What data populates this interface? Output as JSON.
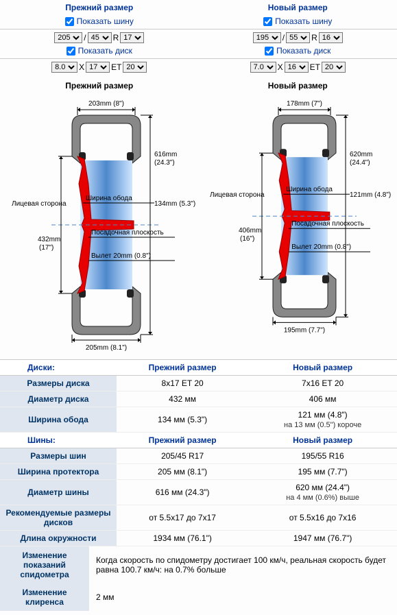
{
  "cols": [
    {
      "title": "Прежний размер",
      "show_tire": "Показать шину",
      "tire_sel": {
        "w": "205",
        "a": "45",
        "r": "17"
      },
      "show_wheel": "Показать диск",
      "wheel_sel": {
        "w": "8.0",
        "d": "17",
        "et": "20"
      },
      "diag_title": "Прежний размер",
      "diag": {
        "top_w": "203mm (8\")",
        "outer_h": "616mm",
        "outer_h2": "(24.3\")",
        "face": "Лицевая сторона",
        "rim_w": "Ширина обода",
        "rim_wv": "134mm (5.3\")",
        "seat": "Посадочная плоскость",
        "rim_d": "432mm",
        "rim_d2": "(17\")",
        "offset": "Вылет 20mm (0.8\")",
        "bot_w": "205mm (8.1\")"
      }
    },
    {
      "title": "Новый размер",
      "show_tire": "Показать шину",
      "tire_sel": {
        "w": "195",
        "a": "55",
        "r": "16"
      },
      "show_wheel": "Показать диск",
      "wheel_sel": {
        "w": "7.0",
        "d": "16",
        "et": "20"
      },
      "diag_title": "Новый размер",
      "diag": {
        "top_w": "178mm (7\")",
        "outer_h": "620mm",
        "outer_h2": "(24.4\")",
        "face": "Лицевая сторона",
        "rim_w": "Ширина обода",
        "rim_wv": "121mm (4.8\")",
        "seat": "Посадочная плоскость",
        "rim_d": "406mm",
        "rim_d2": "(16\")",
        "offset": "Вылет 20mm (0.8\")",
        "bot_w": "195mm (7.7\")"
      }
    }
  ],
  "slash": "/",
  "R": "R",
  "X": "X",
  "ET": "ET",
  "table": {
    "discs_hdr": [
      "Диски:",
      "Прежний размер",
      "Новый размер"
    ],
    "discs_rows": [
      [
        "Размеры диска",
        "8x17 ET 20",
        "7x16 ET 20"
      ],
      [
        "Диаметр диска",
        "432 мм",
        "406 мм"
      ],
      [
        "Ширина обода",
        "134 мм (5.3\")",
        "121 мм (4.8\")\nна 13 мм (0.5\") короче"
      ]
    ],
    "tires_hdr": [
      "Шины:",
      "Прежний размер",
      "Новый размер"
    ],
    "tires_rows": [
      [
        "Размеры шин",
        "205/45 R17",
        "195/55 R16"
      ],
      [
        "Ширина протектора",
        "205 мм (8.1\")",
        "195 мм (7.7\")"
      ],
      [
        "Диаметр шины",
        "616 мм (24.3\")",
        "620 мм (24.4\")\nна 4 мм (0.6%) выше"
      ],
      [
        "Рекомендуемые размеры дисков",
        "от 5.5x17 до 7x17",
        "от 5.5x16 до 7x16"
      ],
      [
        "Длина окружности",
        "1934 мм (76.1\")",
        "1947 мм (76.7\")"
      ]
    ]
  },
  "info": [
    [
      "Изменение показаний спидометра",
      "Когда скорость по спидометру достигает 100 км/ч, реальная скорость будет равна 100.7 км/ч: на 0.7% больше"
    ],
    [
      "Изменение клиренса",
      "2 мм"
    ]
  ]
}
